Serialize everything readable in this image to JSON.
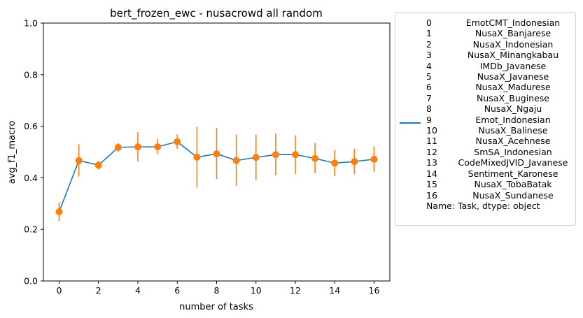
{
  "chart_data": {
    "type": "line",
    "title": "bert_frozen_ewc - nusacrowd all random",
    "xlabel": "number of tasks",
    "ylabel": "avg_f1_macro",
    "xlim": [
      -0.8,
      16.8
    ],
    "ylim": [
      0.0,
      1.0
    ],
    "xticks": [
      0,
      2,
      4,
      6,
      8,
      10,
      12,
      14,
      16
    ],
    "yticks": [
      0.0,
      0.2,
      0.4,
      0.6,
      0.8,
      1.0
    ],
    "grid": false,
    "legend_placement": "outside-right",
    "series": [
      {
        "name": "0         EmotCMT_Indonesian\n1           NusaX_Banjarese\n2          NusaX_Indonesian\n3        NusaX_Minangkabau\n4             IMDb_Javanese\n5            NusaX_Javanese\n6            NusaX_Madurese\n7            NusaX_Buginese\n8              NusaX_Ngaju\n9           Emot_Indonesian\n10          NusaX_Balinese\n11          NusaX_Acehnese\n12         SmSA_Indonesian\n13    CodeMixedJVID_Javanese\n14        Sentiment_Karonese\n15         NusaX_TobaBatak\n16         NusaX_Sundanese\nName: Task, dtype: object",
        "line_color": "#1f77b4",
        "marker_color": "#ff7f0e",
        "x": [
          0,
          1,
          2,
          3,
          4,
          5,
          6,
          7,
          8,
          9,
          10,
          11,
          12,
          13,
          14,
          15,
          16
        ],
        "y": [
          0.268,
          0.467,
          0.449,
          0.518,
          0.52,
          0.52,
          0.54,
          0.48,
          0.493,
          0.467,
          0.479,
          0.49,
          0.49,
          0.475,
          0.457,
          0.463,
          0.472
        ],
        "err_low": [
          0.232,
          0.405,
          0.432,
          0.5,
          0.463,
          0.492,
          0.512,
          0.362,
          0.395,
          0.368,
          0.39,
          0.41,
          0.415,
          0.418,
          0.407,
          0.415,
          0.423
        ],
        "err_high": [
          0.305,
          0.53,
          0.465,
          0.535,
          0.577,
          0.55,
          0.568,
          0.598,
          0.593,
          0.568,
          0.568,
          0.572,
          0.565,
          0.535,
          0.508,
          0.513,
          0.522
        ]
      }
    ]
  },
  "legend": {
    "rows": [
      {
        "idx": "0",
        "name": "EmotCMT_Indonesian"
      },
      {
        "idx": "1",
        "name": "NusaX_Banjarese"
      },
      {
        "idx": "2",
        "name": "NusaX_Indonesian"
      },
      {
        "idx": "3",
        "name": "NusaX_Minangkabau"
      },
      {
        "idx": "4",
        "name": "IMDb_Javanese"
      },
      {
        "idx": "5",
        "name": "NusaX_Javanese"
      },
      {
        "idx": "6",
        "name": "NusaX_Madurese"
      },
      {
        "idx": "7",
        "name": "NusaX_Buginese"
      },
      {
        "idx": "8",
        "name": "NusaX_Ngaju"
      },
      {
        "idx": "9",
        "name": "Emot_Indonesian"
      },
      {
        "idx": "10",
        "name": "NusaX_Balinese"
      },
      {
        "idx": "11",
        "name": "NusaX_Acehnese"
      },
      {
        "idx": "12",
        "name": "SmSA_Indonesian"
      },
      {
        "idx": "13",
        "name": "CodeMixedJVID_Javanese"
      },
      {
        "idx": "14",
        "name": "Sentiment_Karonese"
      },
      {
        "idx": "15",
        "name": "NusaX_TobaBatak"
      },
      {
        "idx": "16",
        "name": "NusaX_Sundanese"
      }
    ],
    "footer": "Name: Task, dtype: object"
  }
}
